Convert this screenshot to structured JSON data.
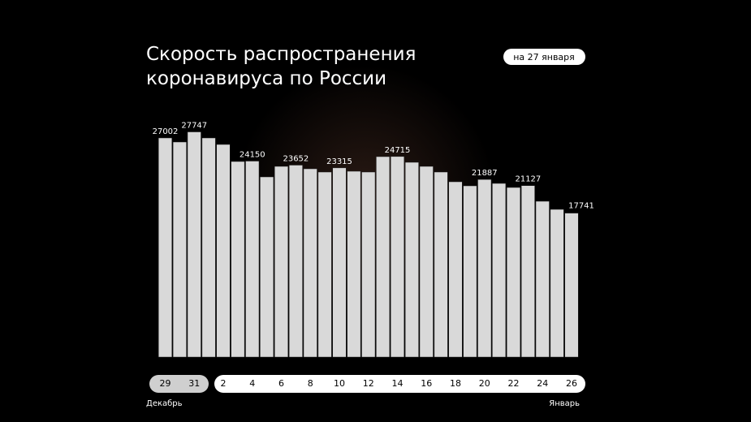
{
  "chart_data": {
    "type": "bar",
    "title": "Скорость распространения коронавируса по России",
    "subtitle": "на 27 января",
    "categories": [
      "29",
      null,
      "31",
      null,
      "2",
      null,
      "4",
      null,
      "6",
      null,
      "8",
      null,
      "10",
      null,
      "12",
      null,
      "14",
      null,
      "16",
      null,
      "18",
      null,
      "20",
      null,
      "22",
      null,
      "24",
      null,
      "26"
    ],
    "values": [
      27002,
      26500,
      27747,
      27000,
      26200,
      24100,
      24150,
      22200,
      23500,
      23652,
      23200,
      22800,
      23315,
      22900,
      22800,
      24700,
      24715,
      24000,
      23500,
      22800,
      21600,
      21100,
      21887,
      21400,
      20900,
      21127,
      19200,
      18200,
      17741
    ],
    "value_labels": [
      "27002",
      null,
      "27747",
      null,
      null,
      null,
      "24150",
      null,
      null,
      "23652",
      null,
      null,
      "23315",
      null,
      null,
      null,
      "24715",
      null,
      null,
      null,
      null,
      null,
      "21887",
      null,
      null,
      "21127",
      null,
      null,
      "17741"
    ],
    "months": [
      "Декабрь",
      "Январь"
    ],
    "color": "#d9d9d9",
    "ylim": [
      0,
      30000
    ]
  }
}
